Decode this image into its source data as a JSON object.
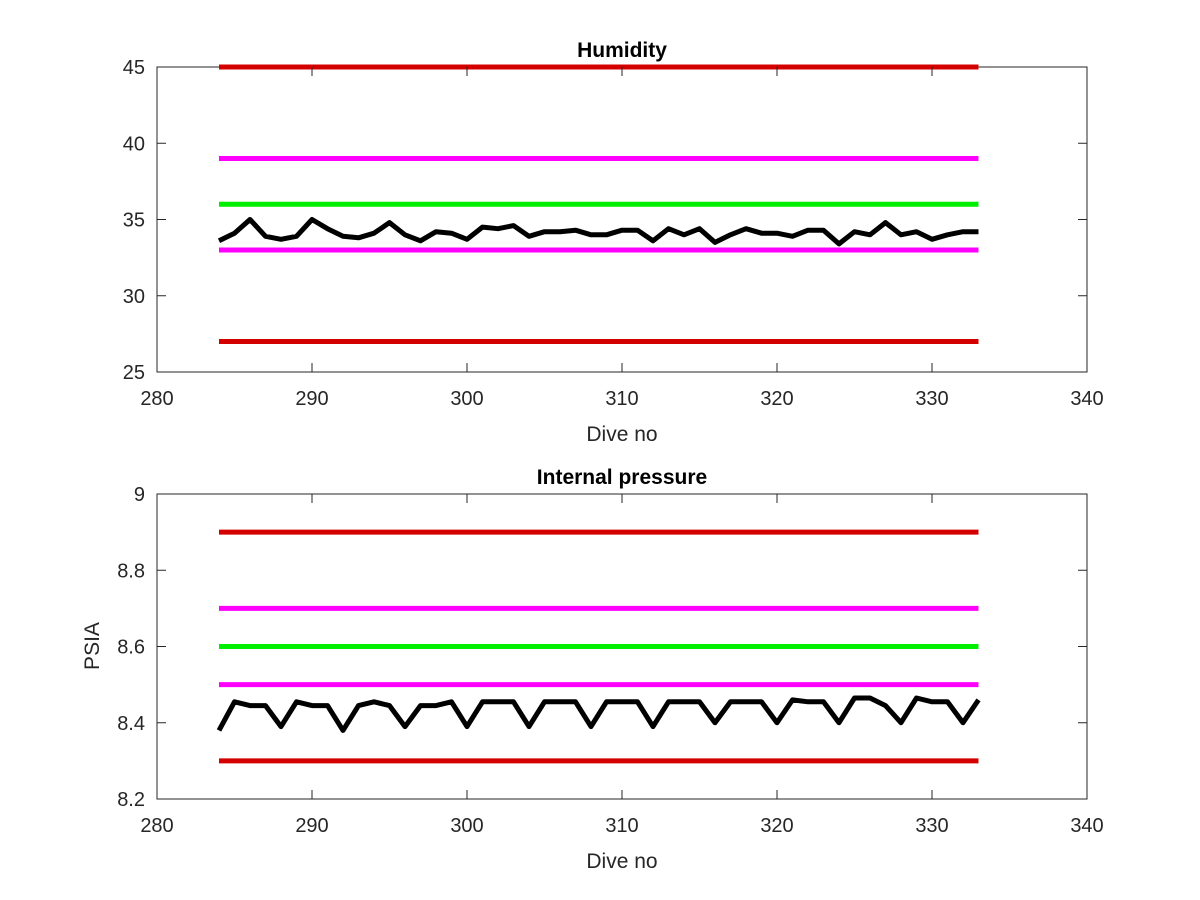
{
  "chart_data": [
    {
      "type": "line",
      "title": "Humidity",
      "xlabel": "Dive no",
      "ylabel": "",
      "xlim": [
        280,
        340
      ],
      "ylim": [
        25,
        45
      ],
      "xticks": [
        280,
        290,
        300,
        310,
        320,
        330,
        340
      ],
      "yticks": [
        25,
        30,
        35,
        40,
        45
      ],
      "xtick_labels": [
        "280",
        "290",
        "300",
        "310",
        "320",
        "330",
        "340"
      ],
      "ytick_labels": [
        "25",
        "30",
        "35",
        "40",
        "45"
      ],
      "grid": false,
      "thresholds": [
        {
          "value": 45,
          "color": "#d40000",
          "x": [
            284,
            333
          ]
        },
        {
          "value": 39,
          "color": "#ff00ff",
          "x": [
            284,
            333
          ]
        },
        {
          "value": 36,
          "color": "#00ee00",
          "x": [
            284,
            333
          ]
        },
        {
          "value": 33,
          "color": "#ff00ff",
          "x": [
            284,
            333
          ]
        },
        {
          "value": 27,
          "color": "#d40000",
          "x": [
            284,
            333
          ]
        }
      ],
      "series": [
        {
          "color": "#000000",
          "x": [
            284,
            285,
            286,
            287,
            288,
            289,
            290,
            291,
            292,
            293,
            294,
            295,
            296,
            297,
            298,
            299,
            300,
            301,
            302,
            303,
            304,
            305,
            306,
            307,
            308,
            309,
            310,
            311,
            312,
            313,
            314,
            315,
            316,
            317,
            318,
            319,
            320,
            321,
            322,
            323,
            324,
            325,
            326,
            327,
            328,
            329,
            330,
            331,
            332,
            333
          ],
          "values": [
            33.6,
            34.1,
            35.0,
            33.9,
            33.7,
            33.9,
            35.0,
            34.4,
            33.9,
            33.8,
            34.1,
            34.8,
            34.0,
            33.6,
            34.2,
            34.1,
            33.7,
            34.5,
            34.4,
            34.6,
            33.9,
            34.2,
            34.2,
            34.3,
            34.0,
            34.0,
            34.3,
            34.3,
            33.6,
            34.4,
            34.0,
            34.4,
            33.5,
            34.0,
            34.4,
            34.1,
            34.1,
            33.9,
            34.3,
            34.3,
            33.4,
            34.2,
            34.0,
            34.8,
            34.0,
            34.2,
            33.7,
            34.0,
            34.2,
            34.2
          ]
        }
      ]
    },
    {
      "type": "line",
      "title": "Internal pressure",
      "xlabel": "Dive no",
      "ylabel": "PSIA",
      "xlim": [
        280,
        340
      ],
      "ylim": [
        8.2,
        9.0
      ],
      "xticks": [
        280,
        290,
        300,
        310,
        320,
        330,
        340
      ],
      "yticks": [
        8.2,
        8.4,
        8.6,
        8.8,
        9.0
      ],
      "xtick_labels": [
        "280",
        "290",
        "300",
        "310",
        "320",
        "330",
        "340"
      ],
      "ytick_labels": [
        "8.2",
        "8.4",
        "8.6",
        "8.8",
        "9"
      ],
      "grid": false,
      "thresholds": [
        {
          "value": 8.9,
          "color": "#d40000",
          "x": [
            284,
            333
          ]
        },
        {
          "value": 8.7,
          "color": "#ff00ff",
          "x": [
            284,
            333
          ]
        },
        {
          "value": 8.6,
          "color": "#00ee00",
          "x": [
            284,
            333
          ]
        },
        {
          "value": 8.5,
          "color": "#ff00ff",
          "x": [
            284,
            333
          ]
        },
        {
          "value": 8.3,
          "color": "#d40000",
          "x": [
            284,
            333
          ]
        }
      ],
      "series": [
        {
          "color": "#000000",
          "x": [
            284,
            285,
            286,
            287,
            288,
            289,
            290,
            291,
            292,
            293,
            294,
            295,
            296,
            297,
            298,
            299,
            300,
            301,
            302,
            303,
            304,
            305,
            306,
            307,
            308,
            309,
            310,
            311,
            312,
            313,
            314,
            315,
            316,
            317,
            318,
            319,
            320,
            321,
            322,
            323,
            324,
            325,
            326,
            327,
            328,
            329,
            330,
            331,
            332,
            333
          ],
          "values": [
            8.38,
            8.455,
            8.445,
            8.445,
            8.39,
            8.455,
            8.445,
            8.445,
            8.38,
            8.445,
            8.455,
            8.445,
            8.39,
            8.445,
            8.445,
            8.455,
            8.39,
            8.455,
            8.455,
            8.455,
            8.39,
            8.455,
            8.455,
            8.455,
            8.39,
            8.455,
            8.455,
            8.455,
            8.39,
            8.455,
            8.455,
            8.455,
            8.4,
            8.455,
            8.455,
            8.455,
            8.4,
            8.46,
            8.455,
            8.455,
            8.4,
            8.465,
            8.465,
            8.445,
            8.4,
            8.465,
            8.455,
            8.455,
            8.4,
            8.46
          ]
        }
      ]
    }
  ]
}
